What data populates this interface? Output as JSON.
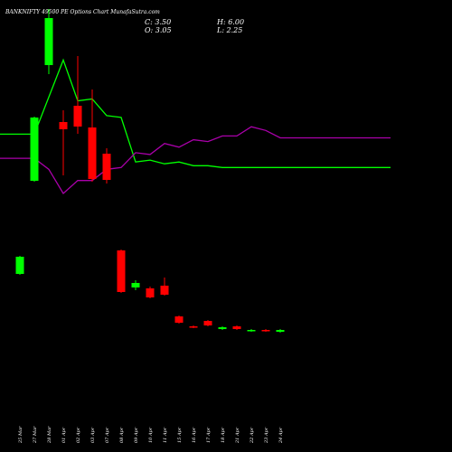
{
  "header": {
    "title": "BANKNIFTY 49500  PE Options  Chart MunafaSutra.com",
    "close_label": "C: 3.50",
    "open_label": "O: 3.05",
    "high_label": "H: 6.00",
    "low_label": "L: 2.25"
  },
  "colors": {
    "background": "#000000",
    "up_candle": "#00ff00",
    "down_candle": "#ff0000",
    "line_green": "#00ff00",
    "line_magenta": "#aa00aa",
    "text": "#ffffff"
  },
  "chart_data": {
    "type": "candlestick",
    "categories": [
      "25 Mar",
      "27 Mar",
      "28 Mar",
      "01 Apr",
      "02 Apr",
      "03 Apr",
      "07 Apr",
      "08 Apr",
      "09 Apr",
      "10 Apr",
      "11 Apr",
      "15 Apr",
      "16 Apr",
      "17 Apr",
      "18 Apr",
      "21 Apr",
      "22 Apr",
      "23 Apr",
      "24 Apr"
    ],
    "price_ylim": [
      0,
      480
    ],
    "candles": [
      {
        "open": 177,
        "close": 196,
        "high": 197,
        "low": 176
      },
      {
        "open": 280,
        "close": 350,
        "high": 351,
        "low": 279
      },
      {
        "open": 408,
        "close": 460,
        "high": 470,
        "low": 398
      },
      {
        "open": 345,
        "close": 337,
        "high": 358,
        "low": 286
      },
      {
        "open": 363,
        "close": 340,
        "high": 418,
        "low": 332
      },
      {
        "open": 339,
        "close": 282,
        "high": 381,
        "low": 279
      },
      {
        "open": 310,
        "close": 281,
        "high": 316,
        "low": 277
      },
      {
        "open": 203,
        "close": 157,
        "high": 204,
        "low": 156
      },
      {
        "open": 162,
        "close": 167,
        "high": 170,
        "low": 159
      },
      {
        "open": 161,
        "close": 151,
        "high": 163,
        "low": 150
      },
      {
        "open": 164,
        "close": 154,
        "high": 173,
        "low": 153
      },
      {
        "open": 130,
        "close": 123,
        "high": 131,
        "low": 122
      },
      {
        "open": 119,
        "close": 118,
        "high": 120,
        "low": 117
      },
      {
        "open": 125,
        "close": 120,
        "high": 126,
        "low": 119
      },
      {
        "open": 116,
        "close": 118,
        "high": 119,
        "low": 115
      },
      {
        "open": 119,
        "close": 116,
        "high": 120,
        "low": 115
      },
      {
        "open": 114,
        "close": 115,
        "high": 116,
        "low": 113
      },
      {
        "open": 115,
        "close": 114,
        "high": 116,
        "low": 113
      },
      {
        "open": 113,
        "close": 115,
        "high": 116,
        "low": 112
      }
    ],
    "lines": {
      "ylim": [
        0,
        100
      ],
      "green": [
        52,
        52,
        72,
        92,
        70,
        71,
        62,
        61,
        37,
        38,
        36,
        37,
        35,
        35,
        34,
        34,
        34,
        34,
        34
      ],
      "magenta": [
        39,
        39,
        33,
        20,
        27,
        27,
        33,
        34,
        42,
        41,
        47,
        45,
        49,
        48,
        51,
        51,
        56,
        54,
        50
      ]
    }
  }
}
